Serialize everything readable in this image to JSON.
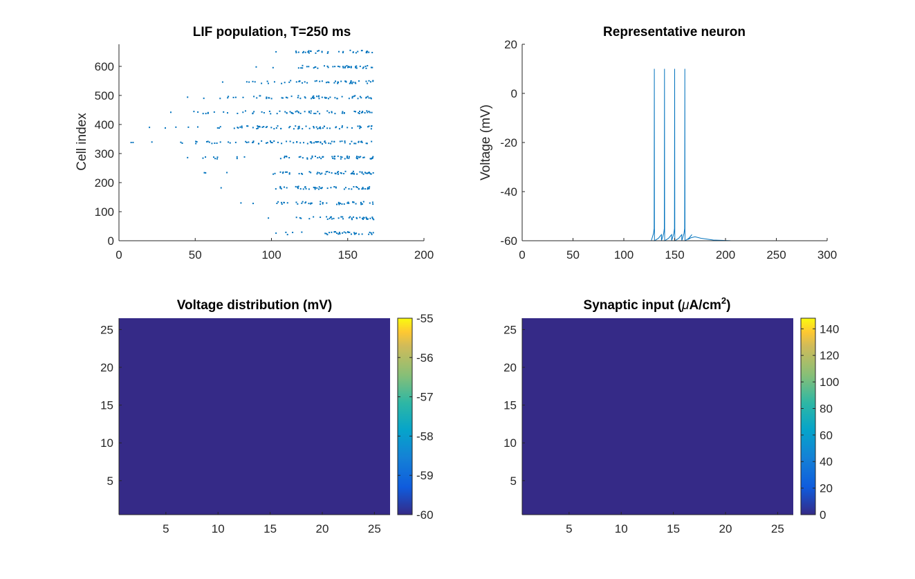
{
  "chart_data": [
    {
      "type": "scatter",
      "title": "LIF population, T=250 ms",
      "xlabel": "",
      "ylabel": "Cell index",
      "xlim": [
        0,
        200
      ],
      "ylim": [
        0,
        676
      ],
      "xticks": [
        "0",
        "50",
        "100",
        "150",
        "200"
      ],
      "yticks": [
        "0",
        "100",
        "200",
        "300",
        "400",
        "500",
        "600"
      ],
      "color": "#0072BD",
      "rows": [
        {
          "y": 26,
          "start": 103
        },
        {
          "y": 78,
          "start": 98
        },
        {
          "y": 130,
          "start": 80
        },
        {
          "y": 182,
          "start": 67
        },
        {
          "y": 234,
          "start": 56
        },
        {
          "y": 286,
          "start": 45
        },
        {
          "y": 338,
          "start": 8
        },
        {
          "y": 390,
          "start": 20
        },
        {
          "y": 442,
          "start": 34
        },
        {
          "y": 494,
          "start": 45
        },
        {
          "y": 546,
          "start": 68
        },
        {
          "y": 598,
          "start": 90
        },
        {
          "y": 650,
          "start": 103
        }
      ],
      "x_end": 167
    },
    {
      "type": "line",
      "title": "Representative neuron",
      "xlabel": "",
      "ylabel": "Voltage (mV)",
      "xlim": [
        0,
        300
      ],
      "ylim": [
        -60,
        20
      ],
      "xticks": [
        "0",
        "50",
        "100",
        "150",
        "200",
        "250",
        "300"
      ],
      "yticks": [
        "-60",
        "-40",
        "-20",
        "0",
        "20"
      ],
      "color": "#0072BD",
      "rest": -60,
      "spike_times": [
        130,
        140,
        150,
        160
      ],
      "spike_peak": 10,
      "t_end": 250
    },
    {
      "type": "heatmap",
      "title": "Voltage distribution (mV)",
      "xticks": [
        "5",
        "10",
        "15",
        "20",
        "25"
      ],
      "yticks": [
        "5",
        "10",
        "15",
        "20",
        "25"
      ],
      "grid_size": 26,
      "value": -60,
      "cell_color": "#352A87",
      "clim": [
        -60,
        -55
      ],
      "colorbar_ticks": [
        "-60",
        "-59",
        "-58",
        "-57",
        "-56",
        "-55"
      ]
    },
    {
      "type": "heatmap",
      "title_main": "Synaptic input (",
      "title_mu": "μ",
      "title_unit": "A/cm",
      "title_sup": "2",
      "title_close": ")",
      "xticks": [
        "5",
        "10",
        "15",
        "20",
        "25"
      ],
      "yticks": [
        "5",
        "10",
        "15",
        "20",
        "25"
      ],
      "grid_size": 26,
      "value": 0,
      "cell_color": "#352A87",
      "clim": [
        0,
        148
      ],
      "colorbar_ticks": [
        "0",
        "20",
        "40",
        "60",
        "80",
        "100",
        "120",
        "140"
      ]
    }
  ]
}
